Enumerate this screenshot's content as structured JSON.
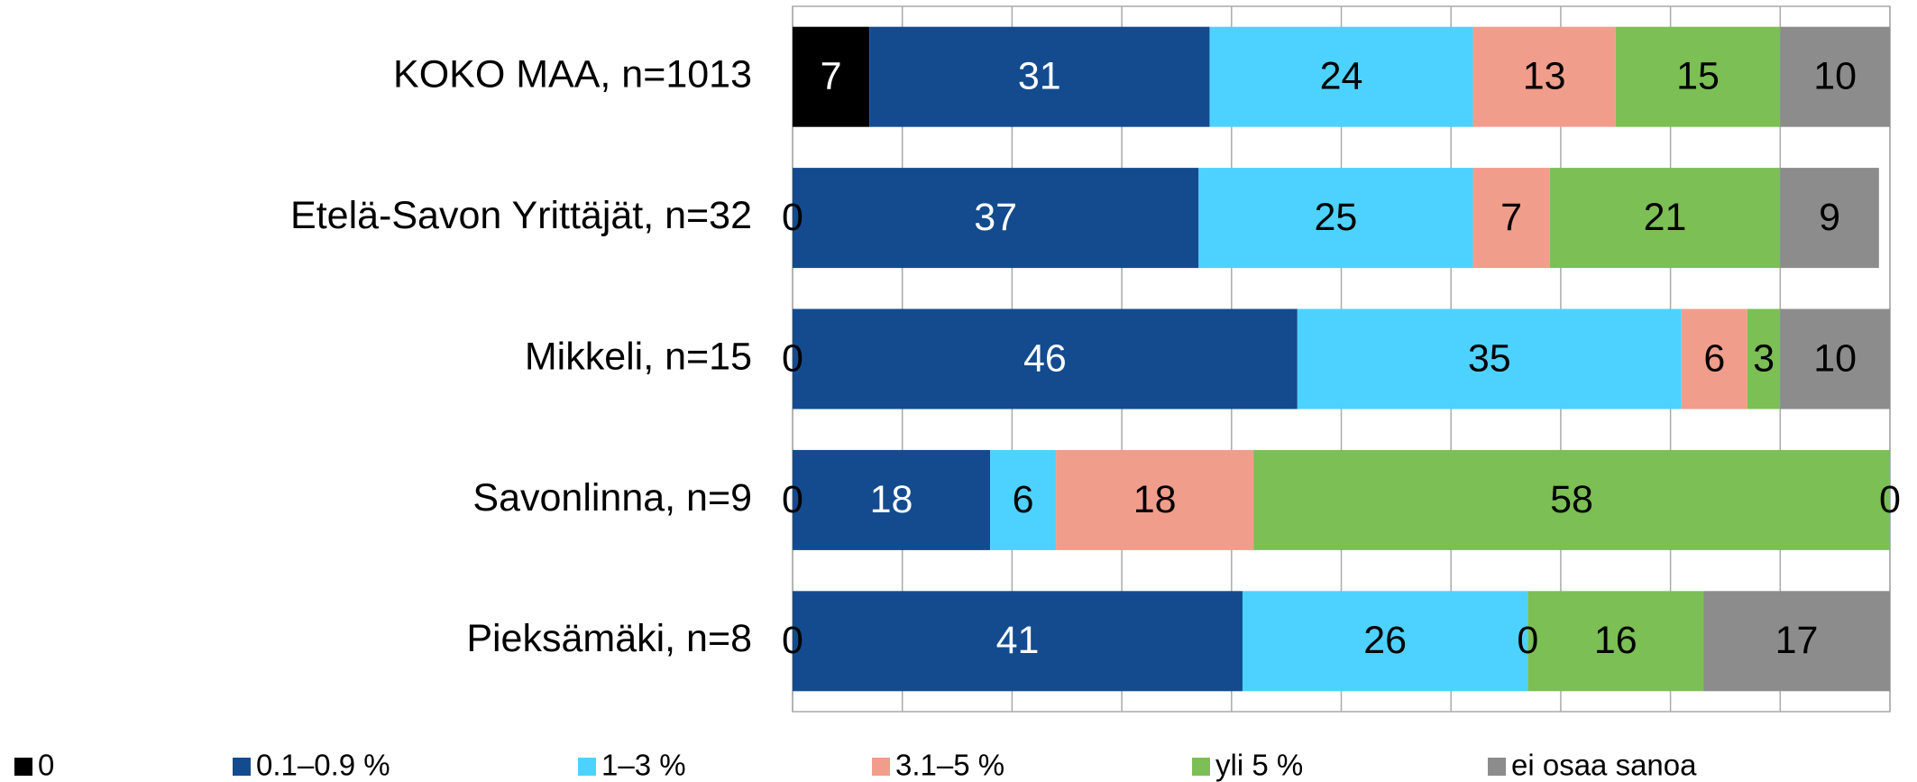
{
  "chart_data": {
    "type": "stacked-bar-horizontal",
    "categories": [
      "KOKO MAA, n=1013",
      "Etelä-Savon Yrittäjät, n=32",
      "Mikkeli, n=15",
      "Savonlinna, n=9",
      "Pieksämäki, n=8"
    ],
    "series": [
      {
        "name": "0",
        "color": "#000000",
        "values": [
          7,
          0,
          0,
          0,
          0
        ]
      },
      {
        "name": "0.1–0.9 %",
        "color": "#134b8e",
        "values": [
          31,
          37,
          46,
          18,
          41
        ]
      },
      {
        "name": "1–3 %",
        "color": "#4dd2ff",
        "values": [
          24,
          25,
          35,
          6,
          26
        ]
      },
      {
        "name": "3.1–5 %",
        "color": "#f19d8c",
        "values": [
          13,
          7,
          6,
          18,
          0
        ]
      },
      {
        "name": "yli 5 %",
        "color": "#7cbf55",
        "values": [
          15,
          21,
          3,
          58,
          16
        ]
      },
      {
        "name": "ei osaa sanoa",
        "color": "#8c8c8c",
        "values": [
          10,
          9,
          10,
          0,
          17
        ]
      }
    ],
    "xlim": [
      0,
      100
    ],
    "xticks": [
      0,
      10,
      20,
      30,
      40,
      50,
      60,
      70,
      80,
      90,
      100
    ],
    "grid": true,
    "legend": "bottom"
  }
}
